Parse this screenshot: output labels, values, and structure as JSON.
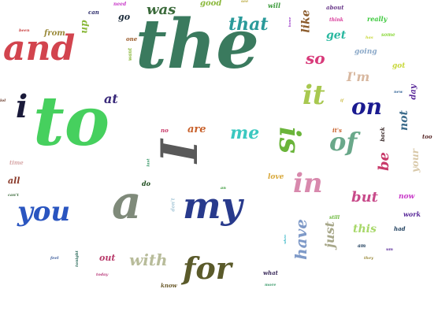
{
  "words": [
    {
      "text": "the",
      "color": "#3a7a5e"
    },
    {
      "text": "to",
      "color": "#46d05e"
    },
    {
      "text": "and",
      "color": "#d2444e"
    },
    {
      "text": "a",
      "color": "#7f8a7a"
    },
    {
      "text": "my",
      "color": "#283a8c"
    },
    {
      "text": "you",
      "color": "#2a55c0"
    },
    {
      "text": "I",
      "color": "#595959"
    },
    {
      "text": "for",
      "color": "#5a5a2a"
    },
    {
      "text": "in",
      "color": "#d889ad"
    },
    {
      "text": "i",
      "color": "#1a1a3a"
    },
    {
      "text": "is",
      "color": "#6ab43a"
    },
    {
      "text": "of",
      "color": "#6aa88a"
    },
    {
      "text": "it",
      "color": "#a8c850"
    },
    {
      "text": "on",
      "color": "#1a1a90"
    },
    {
      "text": "have",
      "color": "#7f9ac8"
    },
    {
      "text": "that",
      "color": "#2a9a9a"
    },
    {
      "text": "me",
      "color": "#3ac8c0"
    },
    {
      "text": "with",
      "color": "#b8bc9a"
    },
    {
      "text": "was",
      "color": "#3a6a3a"
    },
    {
      "text": "so",
      "color": "#d83a7a"
    },
    {
      "text": "be",
      "color": "#c83a6a"
    },
    {
      "text": "but",
      "color": "#c84a8a"
    },
    {
      "text": "I'm",
      "color": "#d8b8a0"
    },
    {
      "text": "just",
      "color": "#a8a88a"
    },
    {
      "text": "at",
      "color": "#3a2a7a"
    },
    {
      "text": "get",
      "color": "#2ab8a0"
    },
    {
      "text": "this",
      "color": "#a8d86a"
    },
    {
      "text": "not",
      "color": "#3a6a8a"
    },
    {
      "text": "like",
      "color": "#8a5a2a"
    },
    {
      "text": "are",
      "color": "#c8602a"
    },
    {
      "text": "all",
      "color": "#8a3a2a"
    },
    {
      "text": "out",
      "color": "#b83a6a"
    },
    {
      "text": "your",
      "color": "#d8c8a8"
    },
    {
      "text": "up",
      "color": "#8ab83a"
    },
    {
      "text": "from",
      "color": "#9a8a3a"
    },
    {
      "text": "good",
      "color": "#8ab83a"
    },
    {
      "text": "go",
      "color": "#1a2a3a"
    },
    {
      "text": "day",
      "color": "#5a2a9a"
    },
    {
      "text": "going",
      "color": "#8aa8c8"
    },
    {
      "text": "now",
      "color": "#c83ac8"
    },
    {
      "text": "love",
      "color": "#d8a83a"
    },
    {
      "text": "got",
      "color": "#c8d83a"
    },
    {
      "text": "really",
      "color": "#3ac83a"
    },
    {
      "text": "will",
      "color": "#3a9a3a"
    },
    {
      "text": "about",
      "color": "#6a3a8a"
    },
    {
      "text": "can",
      "color": "#2a2a6a"
    },
    {
      "text": "one",
      "color": "#9a5a2a"
    },
    {
      "text": "work",
      "color": "#5a2a9a"
    },
    {
      "text": "had",
      "color": "#1a3a5a"
    },
    {
      "text": "do",
      "color": "#1a4a1a"
    },
    {
      "text": "back",
      "color": "#3a2a2a"
    },
    {
      "text": "too",
      "color": "#5a2a2a"
    },
    {
      "text": "it's",
      "color": "#c8602a"
    },
    {
      "text": "time",
      "color": "#d8a8a8"
    },
    {
      "text": "what",
      "color": "#3a2a5a"
    },
    {
      "text": "know",
      "color": "#6a5a2a"
    },
    {
      "text": "no",
      "color": "#c83a6a"
    },
    {
      "text": "don't",
      "color": "#a8c8d8"
    },
    {
      "text": "need",
      "color": "#c83ac8"
    },
    {
      "text": "want",
      "color": "#8ab83a"
    },
    {
      "text": "some",
      "color": "#8ad83a"
    },
    {
      "text": "think",
      "color": "#d83a9a"
    },
    {
      "text": "still",
      "color": "#6ab83a"
    },
    {
      "text": "feel",
      "color": "#3a5a9a"
    },
    {
      "text": "today",
      "color": "#b83a7a"
    },
    {
      "text": "am",
      "color": "#1a3a5a"
    },
    {
      "text": "can't",
      "color": "#3a6a3a"
    },
    {
      "text": "see",
      "color": "#b8a83a"
    },
    {
      "text": "been",
      "color": "#c83a3a"
    },
    {
      "text": "if",
      "color": "#c8b83a"
    },
    {
      "text": "when",
      "color": "#3ab8c8"
    },
    {
      "text": "an",
      "color": "#3a9a3a"
    },
    {
      "text": "new",
      "color": "#3a6a9a"
    },
    {
      "text": "has",
      "color": "#c8d83a"
    },
    {
      "text": "um",
      "color": "#5a2a9a"
    },
    {
      "text": "they",
      "color": "#9a8a3a"
    },
    {
      "text": "last",
      "color": "#3a9a6a"
    },
    {
      "text": "more",
      "color": "#3a9a6a"
    },
    {
      "text": "home",
      "color": "#9a3ac8"
    },
    {
      "text": "lol",
      "color": "#6a3a2a"
    },
    {
      "text": "tonight",
      "color": "#2a6a5a"
    }
  ]
}
